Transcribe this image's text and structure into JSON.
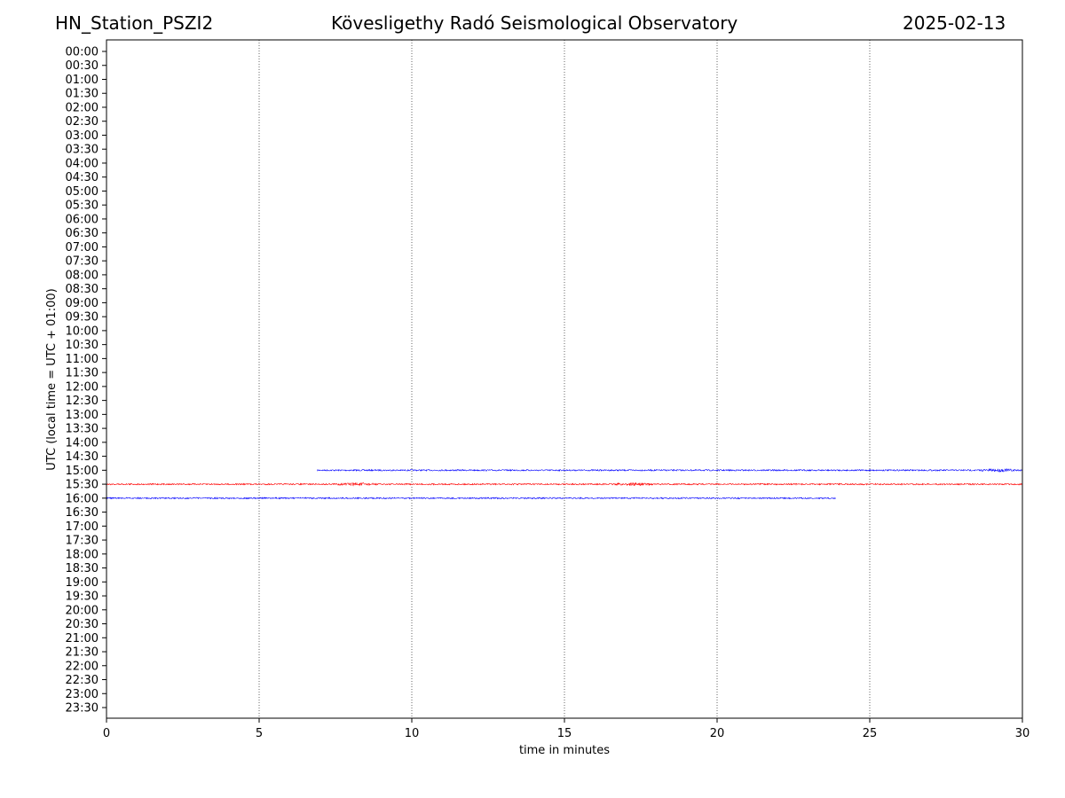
{
  "header": {
    "station": "HN_Station_PSZI2",
    "title": "Kövesligethy Radó Seismological Observatory",
    "date": "2025-02-13"
  },
  "chart_data": {
    "type": "line",
    "title": "Kövesligethy Radó Seismological Observatory",
    "xlabel": "time in minutes",
    "ylabel": "UTC (local time = UTC + 01:00)",
    "xlim": [
      0,
      30
    ],
    "xticks": [
      0,
      5,
      10,
      15,
      20,
      25,
      30
    ],
    "grid": "vertical dotted at x ticks",
    "rows": [
      "00:00",
      "00:30",
      "01:00",
      "01:30",
      "02:00",
      "02:30",
      "03:00",
      "03:30",
      "04:00",
      "04:30",
      "05:00",
      "05:30",
      "06:00",
      "06:30",
      "07:00",
      "07:30",
      "08:00",
      "08:30",
      "09:00",
      "09:30",
      "10:00",
      "10:30",
      "11:00",
      "11:30",
      "12:00",
      "12:30",
      "13:00",
      "13:30",
      "14:00",
      "14:30",
      "15:00",
      "15:30",
      "16:00",
      "16:30",
      "17:00",
      "17:30",
      "18:00",
      "18:30",
      "19:00",
      "19:30",
      "20:00",
      "20:30",
      "21:00",
      "21:30",
      "22:00",
      "22:30",
      "23:00",
      "23:30"
    ],
    "series": [
      {
        "name": "15:00",
        "color": "#0000ff",
        "x_start": 6.9,
        "x_end": 30,
        "bursts": [
          29.3
        ]
      },
      {
        "name": "15:30",
        "color": "#ff0000",
        "x_start": 0,
        "x_end": 30,
        "bursts": [
          8.2,
          17.2
        ]
      },
      {
        "name": "16:00",
        "color": "#0000ff",
        "x_start": 0,
        "x_end": 23.9,
        "bursts": []
      }
    ]
  }
}
